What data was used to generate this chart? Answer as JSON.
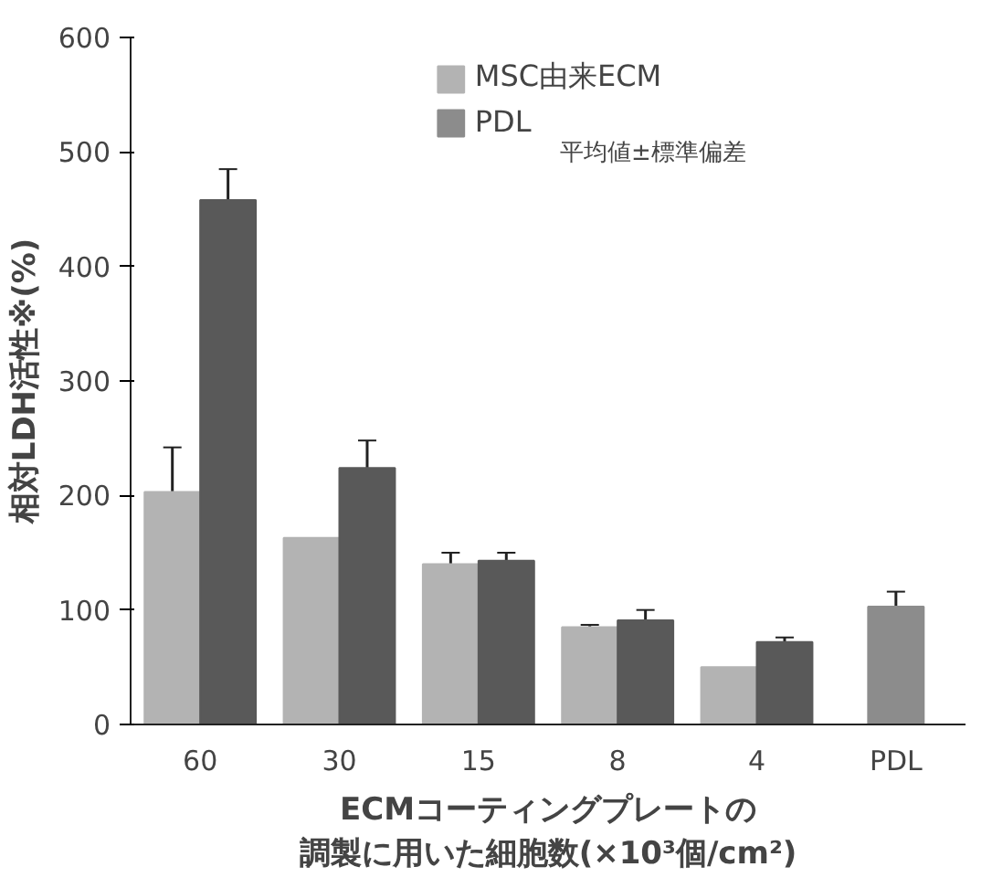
{
  "chart_data": {
    "type": "bar",
    "categories": [
      "60",
      "30",
      "15",
      "8",
      "4",
      "PDL"
    ],
    "ylabel": "相対LDH活性※(%)",
    "xlabel": "ECMコーティングプレートの調製に用いた細胞数(×10³個/cm²)",
    "series": [
      {
        "name": "MSC由来ECM",
        "color": "#b3b3b3",
        "values": [
          203,
          163,
          140,
          85,
          50,
          null
        ],
        "errors": [
          39,
          null,
          10,
          2,
          null,
          null
        ]
      },
      {
        "color": "#595959",
        "values": [
          458,
          224,
          143,
          91,
          72,
          null
        ],
        "errors": [
          27,
          24,
          7,
          9,
          4,
          null
        ]
      },
      {
        "name": "PDL",
        "color": "#8c8c8c",
        "values": [
          null,
          null,
          null,
          null,
          null,
          103
        ],
        "errors": [
          null,
          null,
          null,
          null,
          null,
          13
        ]
      }
    ],
    "ylim": [
      0,
      600
    ],
    "yticks": [
      0,
      100,
      200,
      300,
      400,
      500,
      600
    ],
    "grid": false,
    "legend": "top",
    "annotations": [
      "平均値±標準偏差"
    ]
  }
}
